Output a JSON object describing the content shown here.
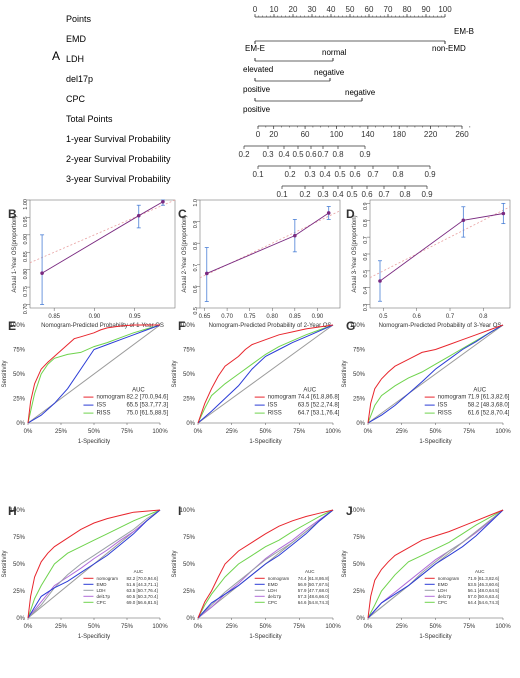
{
  "figure": {
    "nomogram": {
      "panel_label": "A",
      "rows": [
        {
          "label": "Points"
        },
        {
          "label": "EMD"
        },
        {
          "label": "LDH"
        },
        {
          "label": "del17p"
        },
        {
          "label": "CPC"
        },
        {
          "label": "Total Points"
        },
        {
          "label": "1-year Survival Probability"
        },
        {
          "label": "2-year Survival Probability"
        },
        {
          "label": "3-year Survival Probability"
        }
      ],
      "points_ticks": [
        "0",
        "10",
        "20",
        "30",
        "40",
        "50",
        "60",
        "70",
        "80",
        "90",
        "100"
      ],
      "emd_levels": [
        "EM-B",
        "EM-E",
        "non-EMD"
      ],
      "ldh_levels": [
        "normal",
        "elevated"
      ],
      "del17p_levels": [
        "negative",
        "positive"
      ],
      "cpc_levels": [
        "negative",
        "positive"
      ],
      "total_ticks": [
        "0",
        "20",
        "60",
        "100",
        "140",
        "180",
        "220",
        "260"
      ],
      "prob1_ticks": [
        "0.2",
        "0.3",
        "0.4",
        "0.5",
        "0.6",
        "0.7",
        "0.8",
        "0.9"
      ],
      "prob2_ticks": [
        "0.1",
        "0.2",
        "0.3",
        "0.4",
        "0.5",
        "0.6",
        "0.7",
        "0.8",
        "0.9"
      ],
      "prob3_ticks": [
        "0.1",
        "0.2",
        "0.3",
        "0.4",
        "0.5",
        "0.6",
        "0.7",
        "0.8",
        "0.9"
      ]
    },
    "colors": {
      "nomogram": "#e8262d",
      "ISS": "#2a3bd6",
      "RISS": "#6fd34d",
      "EMD": "#2a3bd6",
      "LDH": "#9aa0a6",
      "del17p": "#b06bd9",
      "CPC": "#6fd34d",
      "diag": "#9b9b9b",
      "calib": "#7a2a80",
      "ideal": "#e8a0a0",
      "err": "#4a7fd6"
    }
  },
  "chart_data": [
    {
      "panel": "B",
      "type": "scatter",
      "xlabel": "Nomogram-Predicted Probability of 1-Year OS",
      "ylabel": "Actual 1-Year OS(proportion)",
      "xlim": [
        0.82,
        1.0
      ],
      "ylim": [
        0.69,
        1.0
      ],
      "x_ticks": [
        "0.85",
        "0.90",
        "0.95"
      ],
      "y_ticks": [
        "0.70",
        "0.75",
        "0.80",
        "0.85",
        "0.90",
        "0.95",
        "1.00"
      ],
      "x": [
        0.835,
        0.955,
        0.985
      ],
      "y": [
        0.79,
        0.955,
        0.995
      ],
      "err_low": [
        0.7,
        0.92,
        0.985
      ],
      "err_high": [
        0.9,
        0.985,
        1.0
      ]
    },
    {
      "panel": "C",
      "type": "scatter",
      "xlabel": "Nomogram-Predicted Probability of 2-Year OS",
      "ylabel": "Actual 2-Year OS(proportion)",
      "xlim": [
        0.64,
        0.95
      ],
      "ylim": [
        0.5,
        1.0
      ],
      "x_ticks": [
        "0.65",
        "0.70",
        "0.75",
        "0.80",
        "0.85",
        "0.90"
      ],
      "y_ticks": [
        "0.5",
        "0.6",
        "0.7",
        "0.8",
        "0.9",
        "1.0"
      ],
      "x": [
        0.655,
        0.85,
        0.925
      ],
      "y": [
        0.66,
        0.835,
        0.94
      ],
      "err_low": [
        0.53,
        0.76,
        0.91
      ],
      "err_high": [
        0.78,
        0.91,
        0.97
      ]
    },
    {
      "panel": "D",
      "type": "scatter",
      "xlabel": "Nomogram-Predicted Probability of 3-Year OS",
      "ylabel": "Actual 3-Year OS(proportion)",
      "xlim": [
        0.46,
        0.88
      ],
      "ylim": [
        0.28,
        0.92
      ],
      "x_ticks": [
        "0.5",
        "0.6",
        "0.7",
        "0.8"
      ],
      "y_ticks": [
        "0.3",
        "0.4",
        "0.5",
        "0.6",
        "0.7",
        "0.8",
        "0.9"
      ],
      "x": [
        0.49,
        0.74,
        0.86
      ],
      "y": [
        0.44,
        0.8,
        0.84
      ],
      "err_low": [
        0.32,
        0.7,
        0.78
      ],
      "err_high": [
        0.56,
        0.88,
        0.9
      ]
    },
    {
      "panel": "E",
      "type": "line",
      "xlabel": "1-Specificity",
      "ylabel": "Sensitivity",
      "auc_header": "AUC",
      "series": [
        {
          "name": "nomogram",
          "auc": "82.2 [70.0,94.6]",
          "x": [
            0,
            2,
            5,
            10,
            15,
            20,
            30,
            35,
            40,
            50,
            55,
            60,
            70,
            80,
            100
          ],
          "y": [
            0,
            22,
            40,
            55,
            62,
            68,
            80,
            86,
            88,
            92,
            95,
            97,
            99,
            100,
            100
          ]
        },
        {
          "name": "ISS",
          "auc": "65.5 [53.7,77.3]",
          "x": [
            0,
            10,
            20,
            30,
            40,
            50,
            60,
            70,
            80,
            90,
            100
          ],
          "y": [
            0,
            8,
            20,
            35,
            55,
            75,
            80,
            85,
            90,
            95,
            100
          ]
        },
        {
          "name": "RISS",
          "auc": "75.0 [61.5,88.5]",
          "x": [
            0,
            5,
            10,
            15,
            20,
            30,
            40,
            50,
            60,
            70,
            80,
            90,
            100
          ],
          "y": [
            0,
            30,
            50,
            60,
            66,
            70,
            72,
            78,
            82,
            87,
            92,
            96,
            100
          ]
        }
      ]
    },
    {
      "panel": "F",
      "type": "line",
      "xlabel": "1-Specificity",
      "ylabel": "Sensitivity",
      "auc_header": "AUC",
      "series": [
        {
          "name": "nomogram",
          "auc": "74.4 [61.8,86.8]",
          "x": [
            0,
            5,
            10,
            15,
            20,
            30,
            35,
            40,
            50,
            60,
            70,
            80,
            100
          ],
          "y": [
            0,
            20,
            35,
            48,
            58,
            68,
            75,
            80,
            85,
            90,
            93,
            96,
            100
          ]
        },
        {
          "name": "ISS",
          "auc": "63.5 [52.2,74.8]",
          "x": [
            0,
            10,
            20,
            30,
            40,
            50,
            60,
            70,
            80,
            90,
            100
          ],
          "y": [
            0,
            12,
            25,
            38,
            55,
            68,
            75,
            82,
            88,
            94,
            100
          ]
        },
        {
          "name": "RISS",
          "auc": "64.7 [53.1,76.4]",
          "x": [
            0,
            5,
            10,
            20,
            30,
            40,
            50,
            60,
            70,
            80,
            90,
            100
          ],
          "y": [
            0,
            15,
            28,
            40,
            50,
            60,
            70,
            78,
            84,
            90,
            95,
            100
          ]
        }
      ]
    },
    {
      "panel": "G",
      "type": "line",
      "xlabel": "1-Specificity",
      "ylabel": "Sensitivity",
      "auc_header": "AUC",
      "series": [
        {
          "name": "nomogram",
          "auc": "71.9 [61.3,82.6]",
          "x": [
            0,
            2,
            5,
            10,
            15,
            20,
            30,
            40,
            50,
            60,
            70,
            80,
            90,
            100
          ],
          "y": [
            0,
            20,
            35,
            45,
            52,
            58,
            65,
            72,
            75,
            80,
            85,
            90,
            95,
            100
          ]
        },
        {
          "name": "ISS",
          "auc": "58.2 [48.3,68.0]",
          "x": [
            0,
            10,
            20,
            30,
            40,
            50,
            60,
            70,
            80,
            90,
            100
          ],
          "y": [
            0,
            8,
            18,
            30,
            42,
            55,
            65,
            75,
            83,
            92,
            100
          ]
        },
        {
          "name": "RISS",
          "auc": "61.6 [52.8,70.4]",
          "x": [
            0,
            5,
            10,
            20,
            30,
            40,
            50,
            60,
            70,
            80,
            90,
            100
          ],
          "y": [
            0,
            18,
            28,
            38,
            46,
            52,
            60,
            68,
            76,
            84,
            92,
            100
          ]
        }
      ]
    },
    {
      "panel": "H",
      "type": "line",
      "xlabel": "1-Specificity",
      "ylabel": "Sensitivity",
      "auc_header": "AUC",
      "series": [
        {
          "name": "nomogram",
          "auc": "82.2 [70.0,94.6]",
          "x": [
            0,
            2,
            5,
            10,
            15,
            20,
            30,
            40,
            50,
            60,
            70,
            80,
            100
          ],
          "y": [
            0,
            20,
            38,
            52,
            60,
            66,
            74,
            82,
            88,
            92,
            95,
            98,
            100
          ]
        },
        {
          "name": "EMD",
          "auc": "51.6 [44.3,71.1]",
          "x": [
            0,
            10,
            20,
            30,
            40,
            50,
            60,
            70,
            80,
            90,
            100
          ],
          "y": [
            0,
            20,
            28,
            34,
            42,
            50,
            58,
            68,
            78,
            90,
            100
          ]
        },
        {
          "name": "LDH",
          "auc": "63.5 [50.7,76.4]",
          "x": [
            0,
            10,
            20,
            30,
            40,
            50,
            60,
            70,
            80,
            90,
            100
          ],
          "y": [
            0,
            12,
            28,
            40,
            50,
            58,
            66,
            74,
            82,
            92,
            100
          ]
        },
        {
          "name": "del17p",
          "auc": "60.5 [50.3,70.4]",
          "x": [
            0,
            10,
            20,
            30,
            40,
            50,
            60,
            70,
            80,
            90,
            100
          ],
          "y": [
            0,
            15,
            30,
            38,
            46,
            55,
            63,
            72,
            80,
            90,
            100
          ]
        },
        {
          "name": "CPC",
          "auc": "69.0 [56.6,81.5]",
          "x": [
            0,
            5,
            10,
            20,
            30,
            40,
            50,
            60,
            70,
            80,
            90,
            100
          ],
          "y": [
            0,
            18,
            30,
            50,
            60,
            66,
            72,
            78,
            84,
            90,
            95,
            100
          ]
        }
      ]
    },
    {
      "panel": "I",
      "type": "line",
      "xlabel": "1-Specificity",
      "ylabel": "Sensitivity",
      "auc_header": "AUC",
      "series": [
        {
          "name": "nomogram",
          "auc": "74.4 [61.8,86.8]",
          "x": [
            0,
            5,
            10,
            15,
            20,
            30,
            40,
            50,
            60,
            70,
            80,
            90,
            100
          ],
          "y": [
            0,
            15,
            25,
            38,
            50,
            62,
            70,
            78,
            85,
            90,
            94,
            97,
            100
          ]
        },
        {
          "name": "EMD",
          "auc": "56.9 [50.7,67.5]",
          "x": [
            0,
            10,
            20,
            30,
            40,
            50,
            60,
            70,
            80,
            90,
            100
          ],
          "y": [
            0,
            14,
            22,
            30,
            40,
            50,
            58,
            68,
            78,
            90,
            100
          ]
        },
        {
          "name": "LDH",
          "auc": "57.9 [47.7,68.0]",
          "x": [
            0,
            10,
            20,
            30,
            40,
            50,
            60,
            70,
            80,
            90,
            100
          ],
          "y": [
            0,
            12,
            24,
            34,
            44,
            54,
            62,
            70,
            80,
            90,
            100
          ]
        },
        {
          "name": "del17p",
          "auc": "57.3 [48.6,66.0]",
          "x": [
            0,
            10,
            20,
            30,
            40,
            50,
            60,
            70,
            80,
            90,
            100
          ],
          "y": [
            0,
            10,
            22,
            32,
            44,
            55,
            64,
            72,
            82,
            91,
            100
          ]
        },
        {
          "name": "CPC",
          "auc": "64.6 [54.8,74.3]",
          "x": [
            0,
            5,
            10,
            20,
            30,
            40,
            50,
            60,
            70,
            80,
            90,
            100
          ],
          "y": [
            0,
            12,
            22,
            38,
            50,
            58,
            66,
            72,
            80,
            87,
            94,
            100
          ]
        }
      ]
    },
    {
      "panel": "J",
      "type": "line",
      "xlabel": "1-Specificity",
      "ylabel": "Sensitivity",
      "auc_header": "AUC",
      "series": [
        {
          "name": "nomogram",
          "auc": "71.9 [61.3,82.6]",
          "x": [
            0,
            2,
            5,
            10,
            15,
            20,
            30,
            40,
            50,
            60,
            70,
            80,
            90,
            100
          ],
          "y": [
            0,
            20,
            35,
            45,
            52,
            58,
            65,
            72,
            76,
            80,
            85,
            90,
            95,
            100
          ]
        },
        {
          "name": "EMD",
          "auc": "53.5 [46.3,60.6]",
          "x": [
            0,
            10,
            20,
            30,
            40,
            50,
            60,
            70,
            80,
            90,
            100
          ],
          "y": [
            0,
            14,
            22,
            30,
            40,
            50,
            58,
            66,
            76,
            88,
            100
          ]
        },
        {
          "name": "LDH",
          "auc": "56.1 [48.0,64.5]",
          "x": [
            0,
            10,
            20,
            30,
            40,
            50,
            60,
            70,
            80,
            90,
            100
          ],
          "y": [
            0,
            10,
            20,
            30,
            42,
            52,
            62,
            70,
            80,
            90,
            100
          ]
        },
        {
          "name": "del17p",
          "auc": "57.0 [50.6,63.4]",
          "x": [
            0,
            10,
            20,
            30,
            40,
            50,
            60,
            70,
            80,
            90,
            100
          ],
          "y": [
            0,
            14,
            24,
            34,
            44,
            54,
            62,
            70,
            79,
            89,
            100
          ]
        },
        {
          "name": "CPC",
          "auc": "64.4 [54.6,74.3]",
          "x": [
            0,
            5,
            10,
            20,
            30,
            40,
            50,
            60,
            70,
            80,
            90,
            100
          ],
          "y": [
            0,
            12,
            25,
            40,
            52,
            58,
            64,
            70,
            78,
            86,
            93,
            100
          ]
        }
      ]
    }
  ]
}
